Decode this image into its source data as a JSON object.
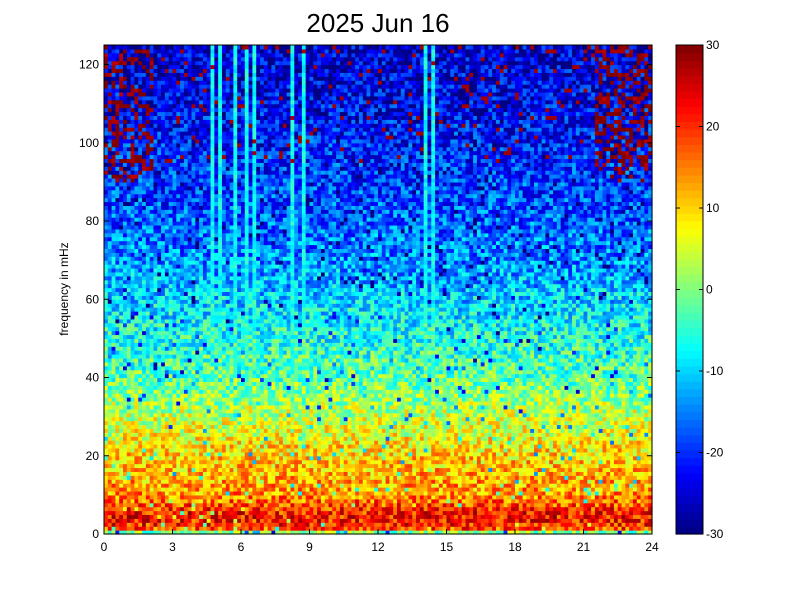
{
  "chart_data": {
    "type": "heatmap",
    "title": "2025 Jun 16",
    "xlabel": "",
    "ylabel": "frequency in mHz",
    "xlim": [
      0,
      24
    ],
    "ylim": [
      0,
      125
    ],
    "x_ticks": [
      0,
      3,
      6,
      9,
      12,
      15,
      18,
      21,
      24
    ],
    "y_ticks": [
      0,
      20,
      40,
      60,
      80,
      100,
      120
    ],
    "grid": false,
    "colormap": "jet",
    "colorbar": {
      "clim": [
        -30,
        30
      ],
      "ticks": [
        -30,
        -20,
        -10,
        0,
        10,
        20,
        30
      ],
      "position": "right"
    },
    "value_profile_by_frequency": {
      "frequency_mHz": [
        0,
        1,
        2,
        5,
        10,
        15,
        20,
        30,
        40,
        50,
        60,
        70,
        80,
        90,
        100,
        110,
        125
      ],
      "typical_value": [
        -16,
        16,
        20,
        22,
        14,
        12,
        10,
        4,
        -2,
        -6,
        -10,
        -14,
        -17,
        -19,
        -21,
        -23,
        -25
      ]
    },
    "vertical_streaks_hours": [
      4.7,
      5.1,
      5.8,
      6.2,
      6.6,
      8.2,
      8.7,
      14.1,
      14.4
    ]
  },
  "colors": {
    "background": "#ffffff",
    "axis": "#000000"
  }
}
